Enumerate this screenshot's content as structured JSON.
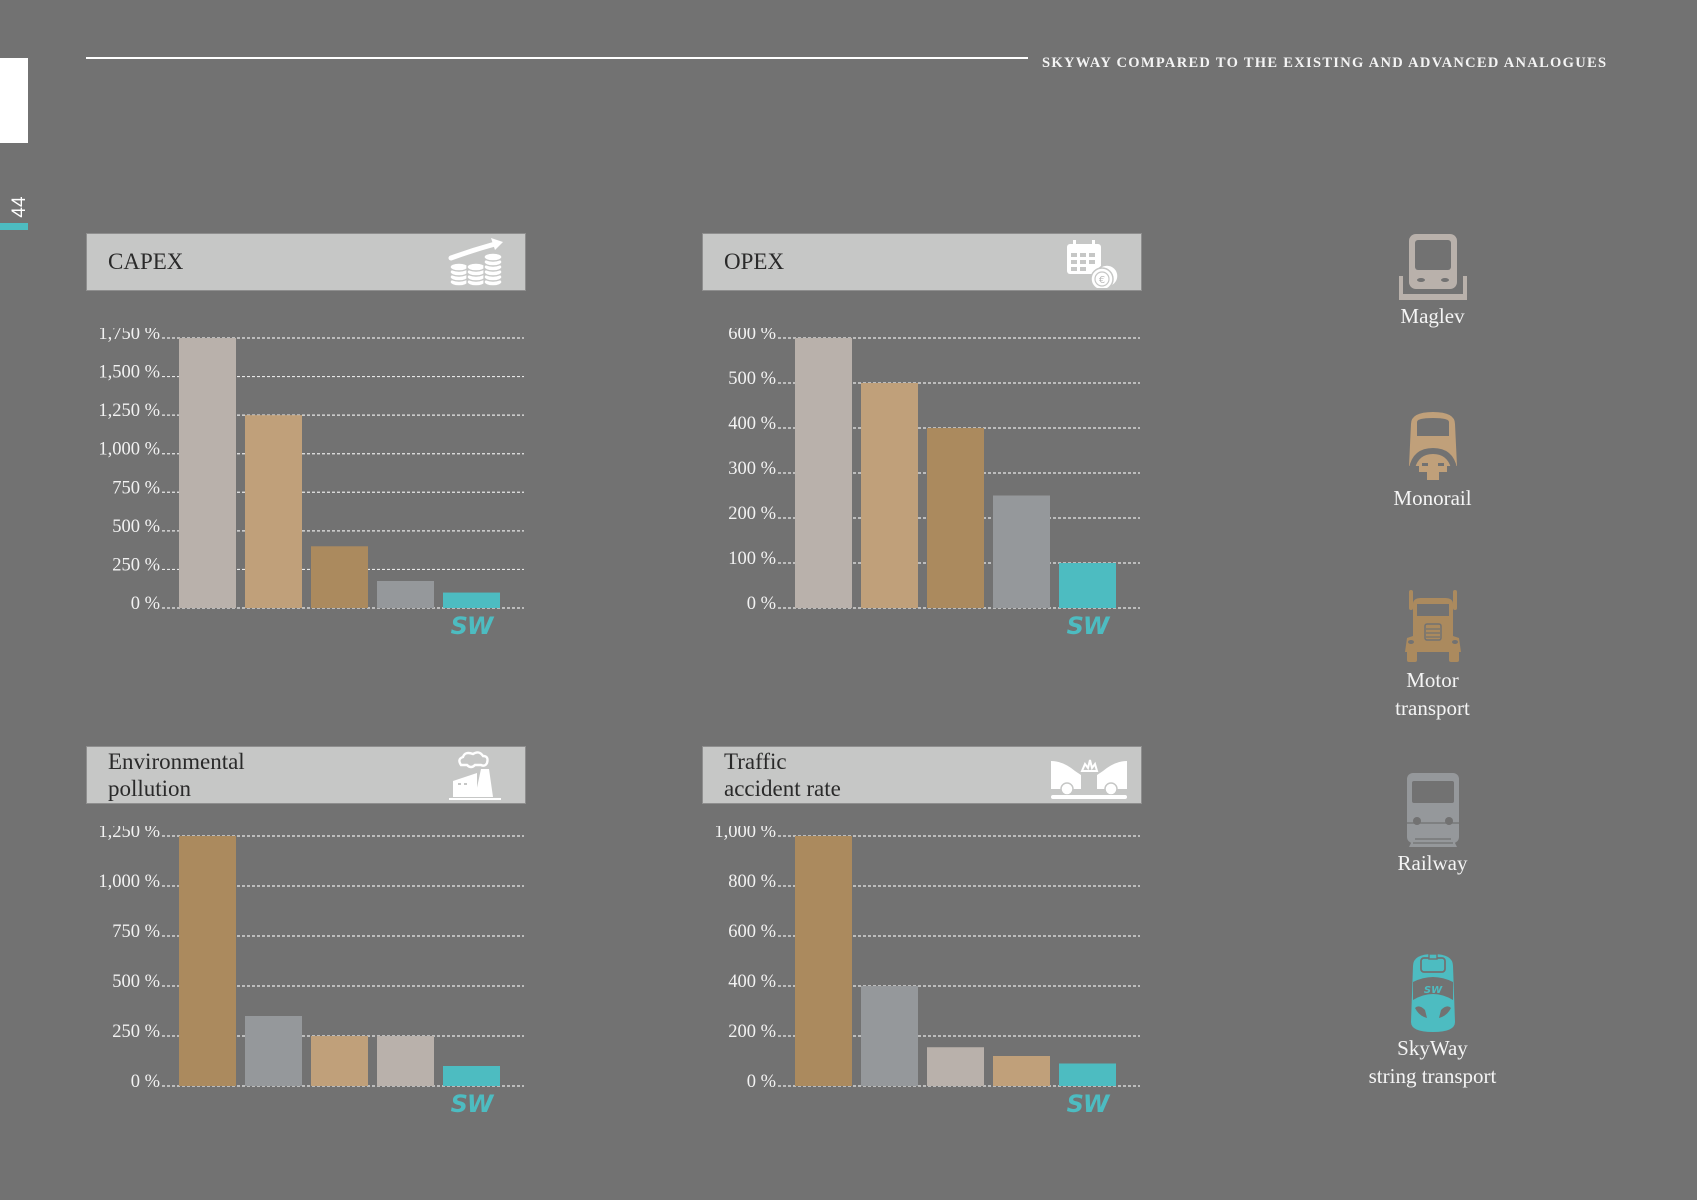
{
  "page": {
    "header_title": "SKYWAY COMPARED TO THE EXISTING AND ADVANCED ANALOGUES",
    "page_number": "44"
  },
  "colors": {
    "background": "#727272",
    "accent": "#4dbcc1",
    "maglev": "#b9b1ab",
    "monorail": "#c0a07a",
    "motor_transport": "#ab8a5e",
    "railway": "#95989b",
    "skyway": "#4dbcc1"
  },
  "legend": [
    {
      "key": "maglev",
      "label": "Maglev",
      "icon": "maglev-train-icon",
      "color": "#b9b1ab"
    },
    {
      "key": "monorail",
      "label": "Monorail",
      "icon": "monorail-icon",
      "color": "#c0a07a"
    },
    {
      "key": "motor_transport",
      "label": "Motor\ntransport",
      "icon": "truck-icon",
      "color": "#ab8a5e"
    },
    {
      "key": "railway",
      "label": "Railway",
      "icon": "train-icon",
      "color": "#95989b"
    },
    {
      "key": "skyway",
      "label": "SkyWay\nstring transport",
      "icon": "skyway-unibus-icon",
      "color": "#4dbcc1"
    }
  ],
  "sw_logo_text": "SW",
  "chart_data": [
    {
      "id": "capex",
      "type": "bar",
      "title": "CAPEX",
      "icon": "coins-growth-icon",
      "xlabel": "",
      "ylabel": "",
      "ylim": [
        0,
        1750
      ],
      "grid": true,
      "yticks": [
        0,
        250,
        500,
        750,
        1000,
        1250,
        1500,
        1750
      ],
      "ytick_labels": [
        "0 %",
        "250 %",
        "500 %",
        "750 %",
        "1,000 %",
        "1,250 %",
        "1,500 %",
        "1,750 %"
      ],
      "categories": [
        "Maglev",
        "Monorail",
        "Motor transport",
        "Railway",
        "SkyWay"
      ],
      "values": [
        1750,
        1250,
        400,
        175,
        100
      ]
    },
    {
      "id": "opex",
      "type": "bar",
      "title": "OPEX",
      "icon": "calendar-euro-icon",
      "xlabel": "",
      "ylabel": "",
      "ylim": [
        0,
        600
      ],
      "grid": true,
      "yticks": [
        0,
        100,
        200,
        300,
        400,
        500,
        600
      ],
      "ytick_labels": [
        "0 %",
        "100 %",
        "200 %",
        "300 %",
        "400 %",
        "500 %",
        "600 %"
      ],
      "categories": [
        "Maglev",
        "Monorail",
        "Motor transport",
        "Railway",
        "SkyWay"
      ],
      "values": [
        600,
        500,
        400,
        250,
        100
      ]
    },
    {
      "id": "pollution",
      "type": "bar",
      "title": "Environmental\npollution",
      "icon": "factory-smoke-icon",
      "xlabel": "",
      "ylabel": "",
      "ylim": [
        0,
        1250
      ],
      "grid": true,
      "yticks": [
        0,
        250,
        500,
        750,
        1000,
        1250
      ],
      "ytick_labels": [
        "0 %",
        "250 %",
        "500 %",
        "750 %",
        "1,000 %",
        "1,250 %"
      ],
      "categories": [
        "Motor transport",
        "Railway",
        "Monorail",
        "Maglev",
        "SkyWay"
      ],
      "values": [
        1250,
        350,
        250,
        250,
        100
      ]
    },
    {
      "id": "accidents",
      "type": "bar",
      "title": "Traffic\naccident rate",
      "icon": "car-crash-icon",
      "xlabel": "",
      "ylabel": "",
      "ylim": [
        0,
        1000
      ],
      "grid": true,
      "yticks": [
        0,
        200,
        400,
        600,
        800,
        1000
      ],
      "ytick_labels": [
        "0 %",
        "200 %",
        "400 %",
        "600 %",
        "800 %",
        "1,000 %"
      ],
      "categories": [
        "Motor transport",
        "Railway",
        "Maglev",
        "Monorail",
        "SkyWay"
      ],
      "values": [
        1000,
        400,
        155,
        120,
        90
      ]
    }
  ]
}
